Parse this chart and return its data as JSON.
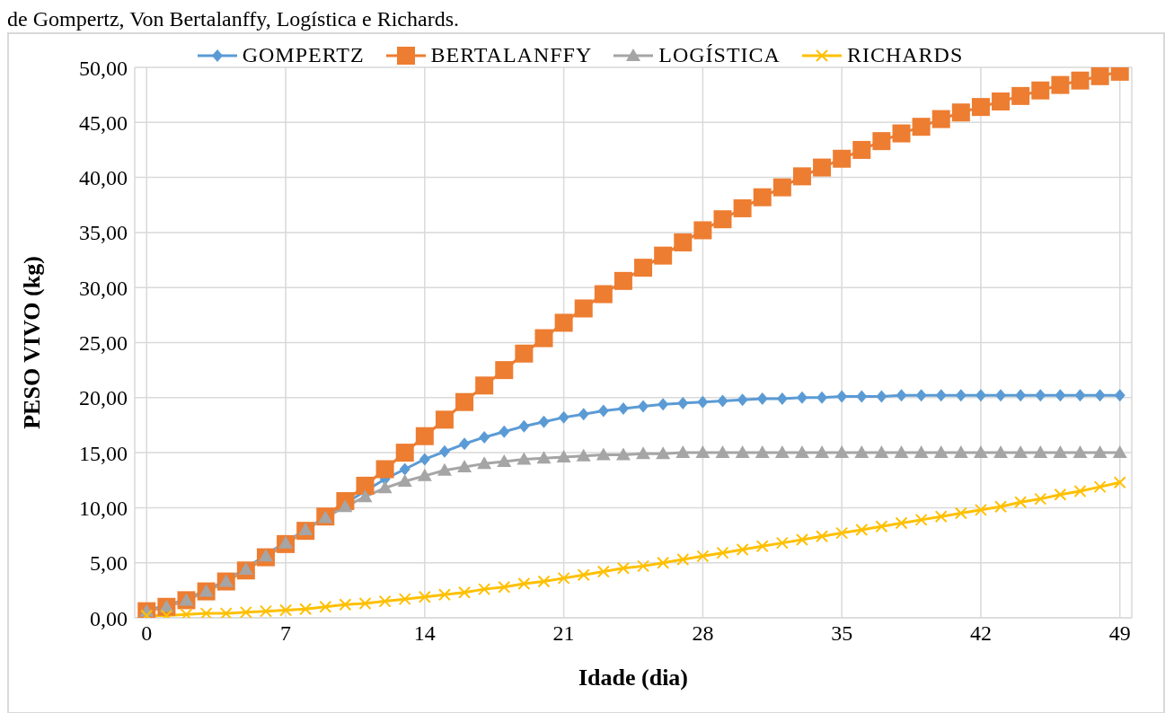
{
  "chart_data": {
    "type": "line",
    "annotations": [
      "de Gompertz, Von Bertalanffy, Logística e Richards."
    ],
    "xlabel": "Idade (dia)",
    "ylabel": "PESO VIVO (kg)",
    "x": [
      0,
      1,
      2,
      3,
      4,
      5,
      6,
      7,
      8,
      9,
      10,
      11,
      12,
      13,
      14,
      15,
      16,
      17,
      18,
      19,
      20,
      21,
      22,
      23,
      24,
      25,
      26,
      27,
      28,
      29,
      30,
      31,
      32,
      33,
      34,
      35,
      36,
      37,
      38,
      39,
      40,
      41,
      42,
      43,
      44,
      45,
      46,
      47,
      48,
      49
    ],
    "xlim": [
      -0.6,
      49.6
    ],
    "xticks": [
      0,
      7,
      14,
      21,
      28,
      35,
      42,
      49
    ],
    "ylim": [
      0,
      50
    ],
    "yticks": [
      {
        "value": 0,
        "label": "0,00"
      },
      {
        "value": 5,
        "label": "5,00"
      },
      {
        "value": 10,
        "label": "10,00"
      },
      {
        "value": 15,
        "label": "15,00"
      },
      {
        "value": 20,
        "label": "20,00"
      },
      {
        "value": 25,
        "label": "25,00"
      },
      {
        "value": 30,
        "label": "30,00"
      },
      {
        "value": 35,
        "label": "35,00"
      },
      {
        "value": 40,
        "label": "40,00"
      },
      {
        "value": 45,
        "label": "45,00"
      },
      {
        "value": 50,
        "label": "50,00"
      }
    ],
    "grid": true,
    "legend": "top",
    "line_style": "solid",
    "series": [
      {
        "name": "GOMPERTZ",
        "color": "#5b9bd5",
        "marker": "diamond",
        "values": [
          0.7,
          1.1,
          1.7,
          2.5,
          3.4,
          4.5,
          5.7,
          6.9,
          8.0,
          9.2,
          10.4,
          null,
          12.6,
          13.5,
          14.4,
          15.1,
          15.8,
          16.4,
          16.9,
          17.4,
          17.8,
          18.2,
          18.5,
          18.8,
          19.0,
          19.2,
          19.4,
          19.5,
          19.6,
          19.7,
          19.8,
          19.9,
          19.9,
          20.0,
          20.0,
          20.1,
          20.1,
          20.1,
          20.2,
          20.2,
          20.2,
          20.2,
          20.2,
          20.2,
          20.2,
          20.2,
          20.2,
          20.2,
          20.2,
          20.2
        ]
      },
      {
        "name": "BERTALANFFY",
        "color": "#ed7d31",
        "marker": "square",
        "values": [
          0.6,
          1.0,
          1.6,
          2.4,
          3.3,
          4.3,
          5.5,
          6.7,
          7.9,
          9.2,
          10.6,
          12.0,
          13.5,
          15.0,
          16.5,
          18.0,
          19.6,
          21.1,
          22.5,
          24.0,
          25.4,
          26.8,
          28.1,
          29.4,
          30.6,
          31.8,
          32.9,
          34.1,
          35.2,
          36.2,
          37.2,
          38.2,
          39.1,
          40.1,
          40.9,
          41.7,
          42.5,
          43.3,
          44.0,
          44.6,
          45.3,
          45.9,
          46.4,
          46.9,
          47.4,
          47.9,
          48.4,
          48.8,
          49.2,
          49.6
        ]
      },
      {
        "name": "LOGÍSTICA",
        "color": "#a5a5a5",
        "marker": "triangle",
        "values": [
          0.6,
          1.0,
          1.6,
          2.4,
          3.3,
          4.4,
          5.6,
          6.8,
          8.0,
          9.1,
          10.1,
          11.0,
          11.8,
          12.4,
          12.9,
          13.4,
          13.7,
          14.0,
          14.2,
          14.4,
          14.5,
          14.6,
          14.7,
          14.8,
          14.8,
          14.9,
          14.9,
          15.0,
          15.0,
          15.0,
          15.0,
          15.0,
          15.0,
          15.0,
          15.0,
          15.0,
          15.0,
          15.0,
          15.0,
          15.0,
          15.0,
          15.0,
          15.0,
          15.0,
          15.0,
          15.0,
          15.0,
          15.0,
          15.0,
          15.0
        ]
      },
      {
        "name": "RICHARDS",
        "color": "#ffc000",
        "marker": "cross",
        "values": [
          0.2,
          0.2,
          0.3,
          0.4,
          0.4,
          0.5,
          0.6,
          0.7,
          0.8,
          1.0,
          1.2,
          1.3,
          1.5,
          1.7,
          1.9,
          2.1,
          2.3,
          2.6,
          2.8,
          3.1,
          3.3,
          3.6,
          3.9,
          4.2,
          4.5,
          4.7,
          5.0,
          5.3,
          5.6,
          5.9,
          6.2,
          6.5,
          6.8,
          7.1,
          7.4,
          7.7,
          8.0,
          8.3,
          8.6,
          8.9,
          9.2,
          9.5,
          9.8,
          10.1,
          10.5,
          10.8,
          11.2,
          11.5,
          11.9,
          12.3
        ]
      }
    ]
  }
}
